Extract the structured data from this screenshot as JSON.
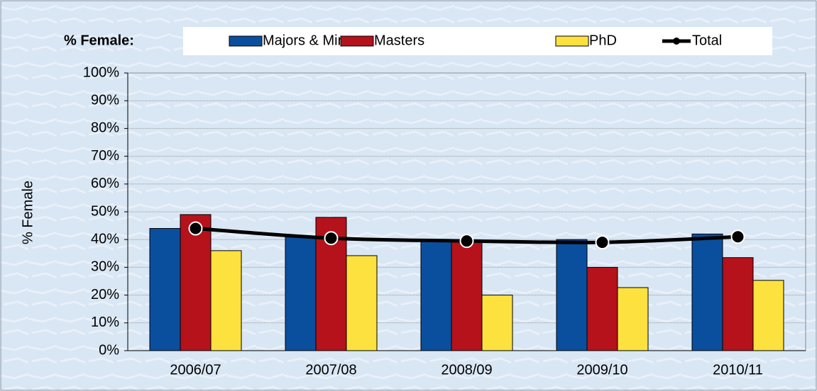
{
  "chart_data": {
    "type": "bar",
    "legend_title": "% Female:",
    "y_label": "% Female",
    "categories": [
      "2006/07",
      "2007/08",
      "2008/09",
      "2009/10",
      "2010/11"
    ],
    "series": [
      {
        "name": "Majors & Minors",
        "color": "#0a4f9e",
        "type": "bar",
        "values": [
          44,
          41,
          40,
          40,
          42
        ]
      },
      {
        "name": "Masters",
        "color": "#b5121b",
        "type": "bar",
        "values": [
          49,
          48,
          39.5,
          30,
          33.5
        ]
      },
      {
        "name": "PhD",
        "color": "#fde23f",
        "type": "bar",
        "values": [
          36,
          34.2,
          20,
          22.7,
          25.3
        ]
      },
      {
        "name": "Total",
        "color": "#000000",
        "type": "line",
        "values": [
          44,
          40.5,
          39.5,
          39,
          41
        ]
      }
    ],
    "ylim": [
      0,
      100
    ],
    "yticks": [
      {
        "value": 0,
        "label": "0%"
      },
      {
        "value": 10,
        "label": "10%"
      },
      {
        "value": 20,
        "label": "20%"
      },
      {
        "value": 30,
        "label": "30%"
      },
      {
        "value": 40,
        "label": "40%"
      },
      {
        "value": 50,
        "label": "50%"
      },
      {
        "value": 60,
        "label": "60%"
      },
      {
        "value": 70,
        "label": "70%"
      },
      {
        "value": 80,
        "label": "80%"
      },
      {
        "value": 90,
        "label": "90%"
      },
      {
        "value": 100,
        "label": "100%"
      }
    ],
    "grid": true
  }
}
